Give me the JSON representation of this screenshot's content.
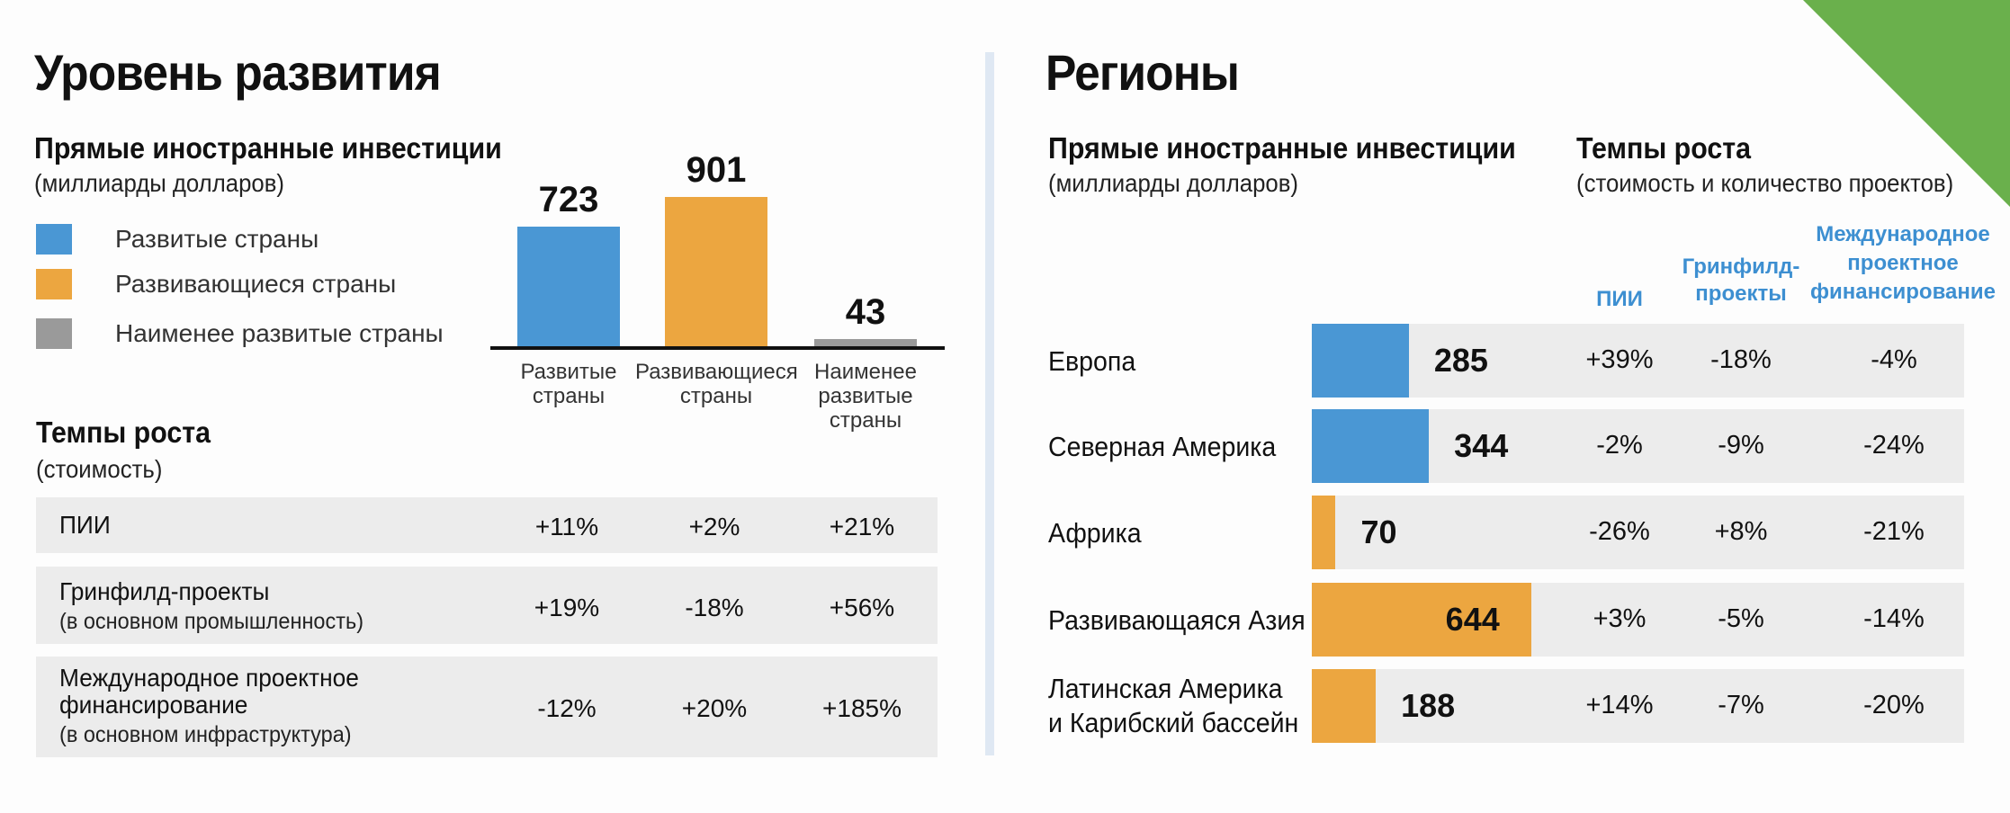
{
  "colors": {
    "developed": "#4a97d4",
    "developing": "#eca640",
    "least": "#9a9a9a",
    "row_bg": "#ececec",
    "accent_green": "#6ab04c",
    "blue_text": "#3d8fd1"
  },
  "left": {
    "title": "Уровень развития",
    "fdi_title": "Прямые иностранные инвестиции",
    "fdi_unit": "(миллиарды долларов)",
    "legend": [
      "Развитые страны",
      "Развивающиеся страны",
      "Наименее развитые страны"
    ],
    "growth_title": "Темпы роста",
    "growth_sub": "(стоимость)",
    "growth_rows": [
      {
        "label": "ПИИ",
        "note": "",
        "values": [
          "+11%",
          "+2%",
          "+21%"
        ]
      },
      {
        "label": "Гринфилд-проекты",
        "note": "(в основном промышленность)",
        "values": [
          "+19%",
          "-18%",
          "+56%"
        ]
      },
      {
        "label": "Международное проектное",
        "label2": "финансирование",
        "note": "(в основном инфраструктура)",
        "values": [
          "-12%",
          "+20%",
          "+185%"
        ]
      }
    ]
  },
  "right": {
    "title": "Регионы",
    "fdi_title": "Прямые иностранные инвестиции",
    "fdi_unit": "(миллиарды долларов)",
    "growth_title": "Темпы роста",
    "growth_sub": "(стоимость и количество проектов)",
    "col_heads": [
      "ПИИ",
      "Гринфилд-",
      "проекты",
      "Международное",
      "проектное",
      "финансирование"
    ]
  },
  "chart_data": [
    {
      "type": "bar",
      "categories": [
        "Развитые страны",
        "Развивающиеся страны",
        "Наименее развитые страны"
      ],
      "category_labels": [
        [
          "Развитые",
          "страны"
        ],
        [
          "Развивающиеся",
          "страны"
        ],
        [
          "Наименее",
          "развитые",
          "страны"
        ]
      ],
      "values": [
        723,
        901,
        43
      ],
      "ylim": [
        0,
        901
      ]
    },
    {
      "type": "bar",
      "orientation": "horizontal",
      "categories": [
        "Европа",
        "Северная Америка",
        "Африка",
        "Развивающаяся Азия",
        "Латинская Америка и Карибский бассейн"
      ],
      "category_labels": [
        [
          "Европа"
        ],
        [
          "Северная Америка"
        ],
        [
          "Африка"
        ],
        [
          "Развивающаяся Азия"
        ],
        [
          "Латинская Америка",
          "и Карибский бассейн"
        ]
      ],
      "values": [
        285,
        344,
        70,
        644,
        188
      ],
      "groups": [
        "developed",
        "developed",
        "developing",
        "developing",
        "developing"
      ],
      "xlim": [
        0,
        740
      ],
      "growth": [
        [
          "+39%",
          "-18%",
          "-4%"
        ],
        [
          "-2%",
          "-9%",
          "-24%"
        ],
        [
          "-26%",
          "+8%",
          "-21%"
        ],
        [
          "+3%",
          "-5%",
          "-14%"
        ],
        [
          "+14%",
          "-7%",
          "-20%"
        ]
      ]
    }
  ]
}
